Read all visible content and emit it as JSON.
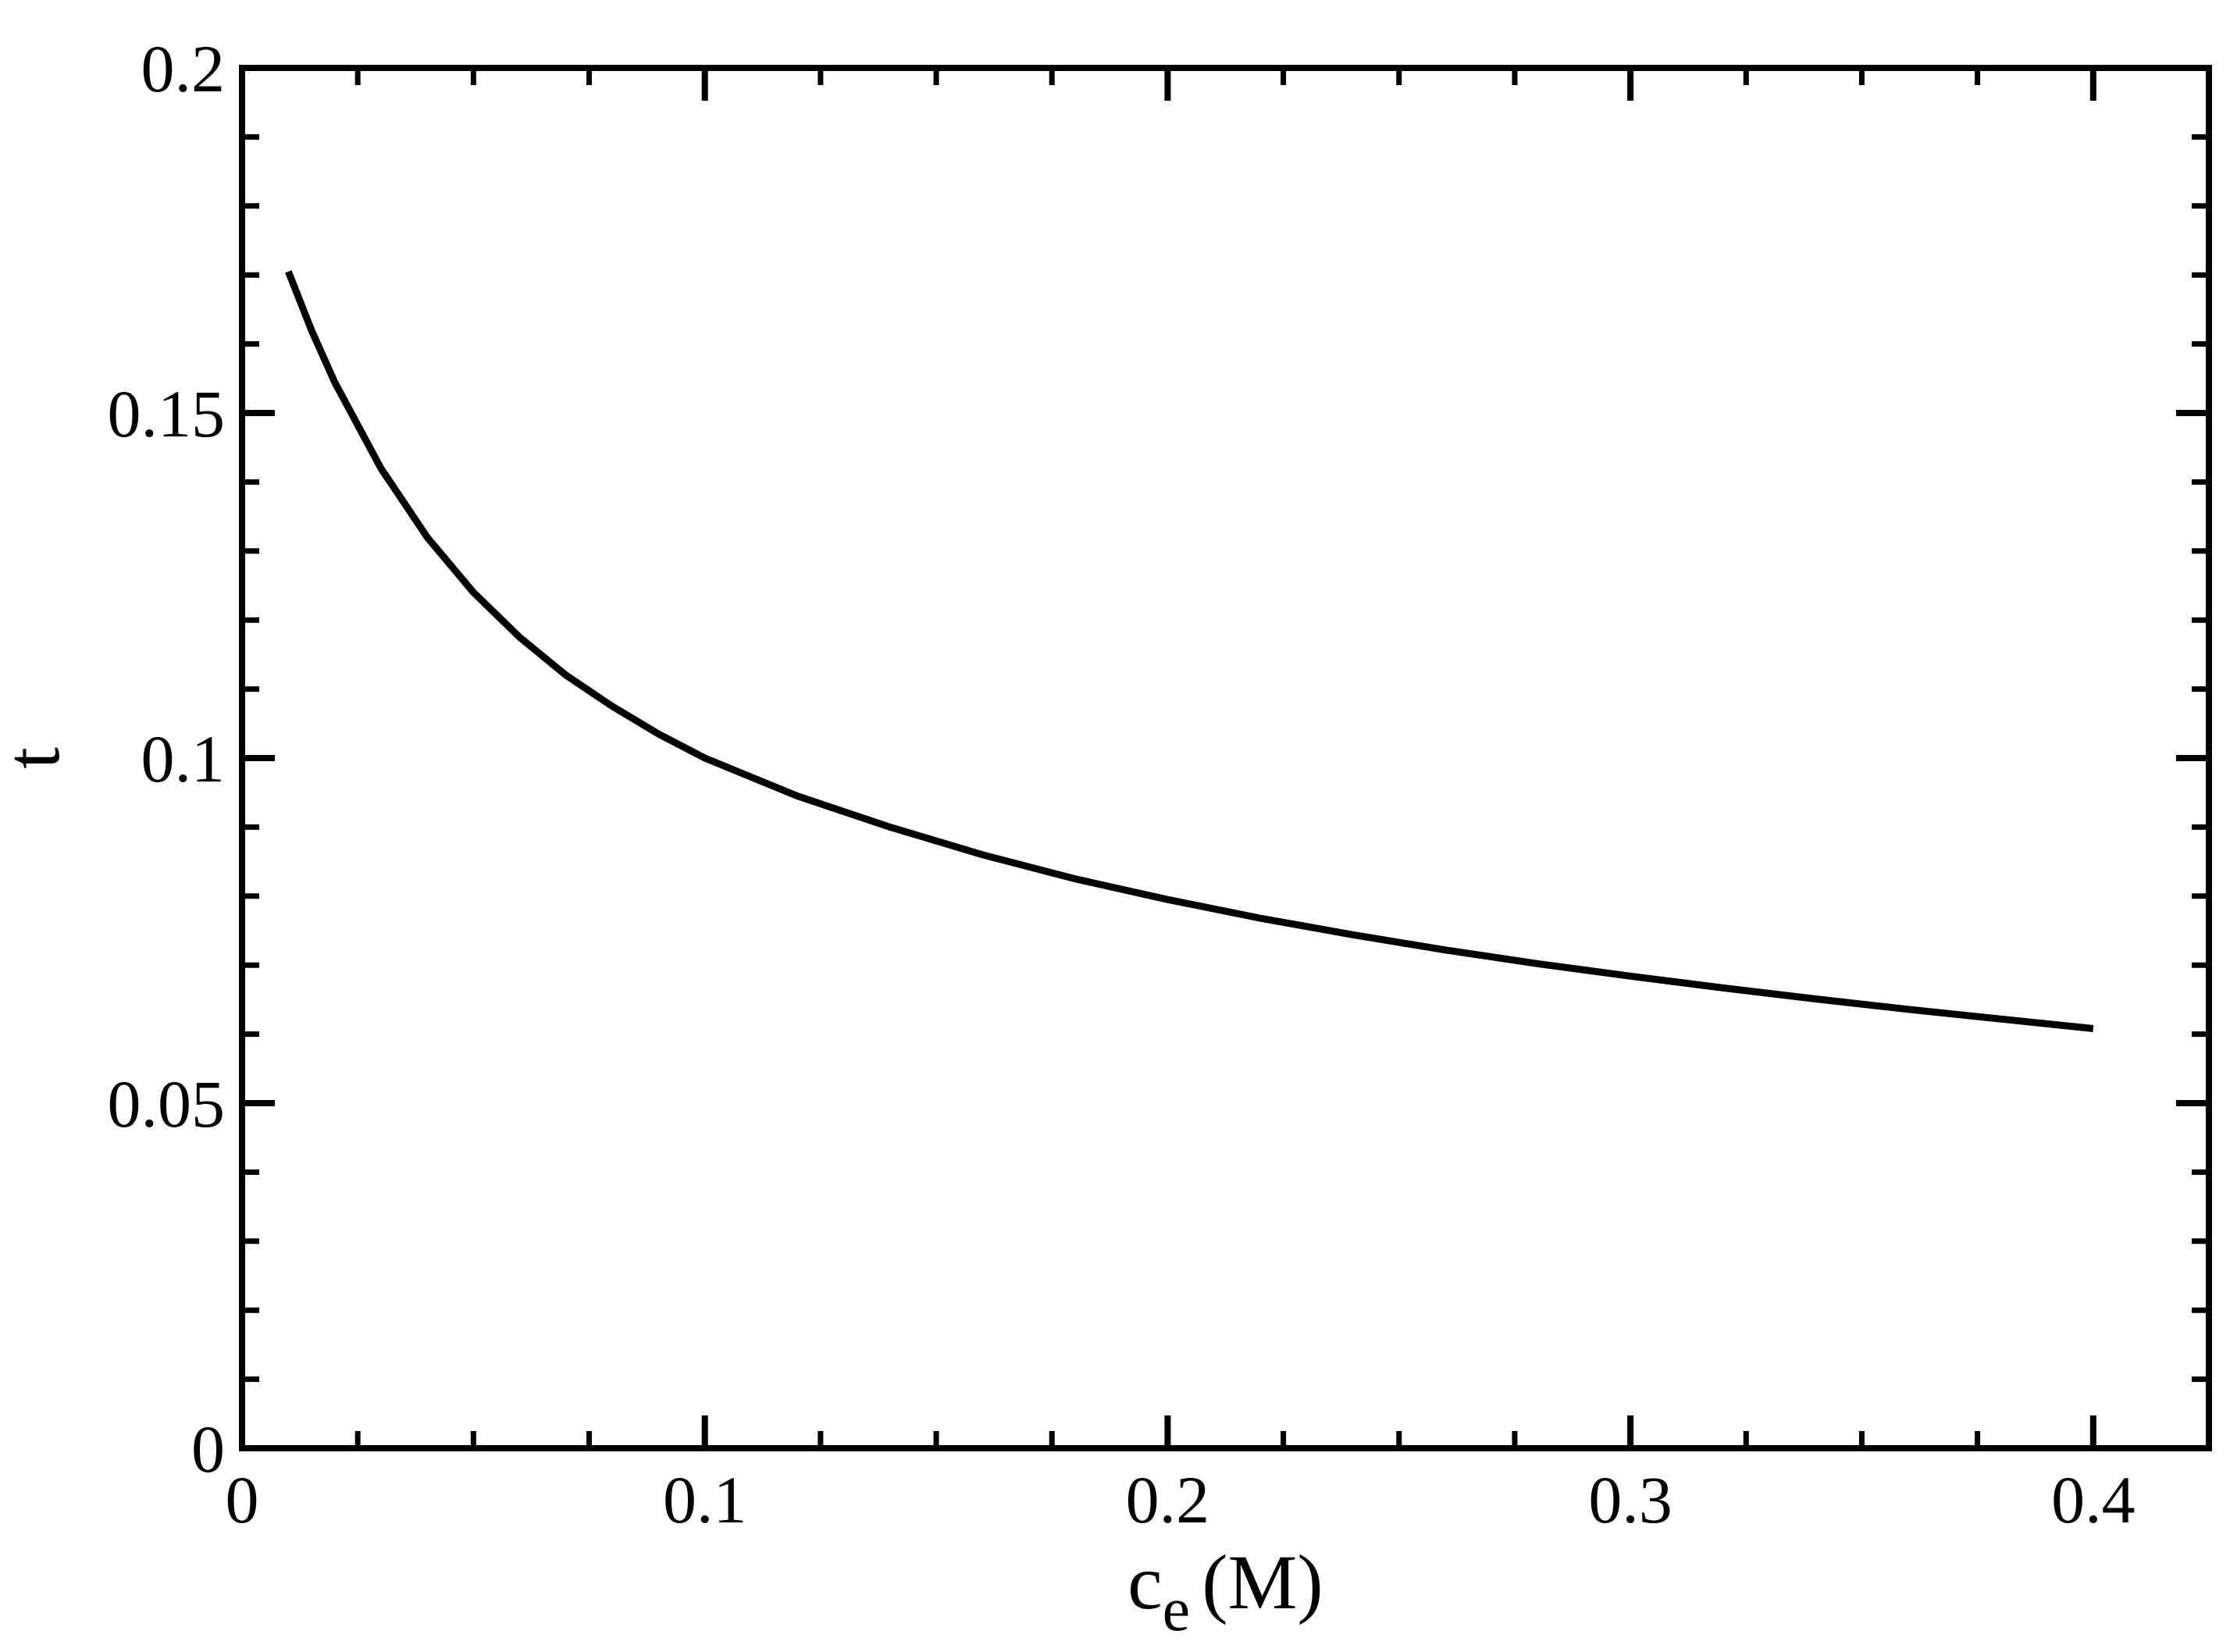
{
  "chart_data": {
    "type": "line",
    "title": "",
    "xlabel": {
      "main": "c",
      "subscript": "e",
      "unit": "(M)"
    },
    "ylabel": "t",
    "xlim": [
      0,
      0.425
    ],
    "ylim": [
      0,
      0.2
    ],
    "x_ticks": [
      0,
      0.1,
      0.2,
      0.3,
      0.4
    ],
    "x_tick_labels": [
      "0",
      "0.1",
      "0.2",
      "0.3",
      "0.4"
    ],
    "x_minor_step": 0.025,
    "y_ticks": [
      0,
      0.05,
      0.1,
      0.15,
      0.2
    ],
    "y_tick_labels": [
      "0",
      "0.05",
      "0.1",
      "0.15",
      "0.2"
    ],
    "y_minor_step": 0.01,
    "grid": false,
    "series": [
      {
        "color": "#000000",
        "x": [
          0.01,
          0.015,
          0.02,
          0.03,
          0.04,
          0.05,
          0.06,
          0.07,
          0.08,
          0.09,
          0.1,
          0.12,
          0.14,
          0.16,
          0.18,
          0.2,
          0.22,
          0.24,
          0.26,
          0.28,
          0.3,
          0.32,
          0.34,
          0.36,
          0.38,
          0.4
        ],
        "y": [
          0.1705,
          0.162,
          0.1545,
          0.142,
          0.132,
          0.124,
          0.1175,
          0.112,
          0.1075,
          0.1035,
          0.1,
          0.0945,
          0.09,
          0.086,
          0.0825,
          0.0795,
          0.0768,
          0.0744,
          0.0722,
          0.0702,
          0.0684,
          0.0667,
          0.0651,
          0.0636,
          0.0622,
          0.0608
        ]
      }
    ]
  }
}
